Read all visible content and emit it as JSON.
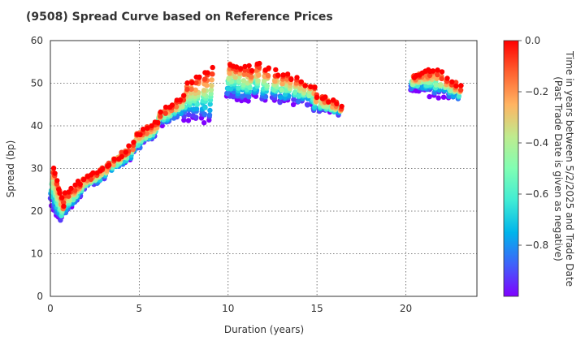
{
  "chart_data": {
    "type": "scatter",
    "title": "(9508)   Spread Curve based on Reference Prices",
    "xlabel": "Duration (years)",
    "ylabel": "Spread (bp)",
    "xlim": [
      0,
      24
    ],
    "ylim": [
      0,
      60
    ],
    "xticks": [
      0,
      5,
      10,
      15,
      20
    ],
    "yticks": [
      0,
      10,
      20,
      30,
      40,
      50,
      60
    ],
    "grid": true,
    "colorbar": {
      "label_line1": "Time in years between 5/2/2025 and Trade Date",
      "label_line2": "(Past Trade Date is given as negative)",
      "range": [
        -1.0,
        0.0
      ],
      "ticks": [
        0.0,
        -0.2,
        -0.4,
        -0.6,
        -0.8
      ],
      "tick_labels": [
        "0.0",
        "−0.2",
        "−0.4",
        "−0.6",
        "−0.8"
      ],
      "colormap": "rainbow",
      "colors": [
        "#7f00ff",
        "#3f62fa",
        "#00b5eb",
        "#40ecd4",
        "#80feb3",
        "#bfeb8e",
        "#ffb462",
        "#ff6230",
        "#ff0000"
      ]
    },
    "bond_segments": [
      {
        "x": [
          0.15,
          0.8
        ],
        "y_at_time0": [
          30.5,
          21.0
        ],
        "y_at_time_old": [
          22.5,
          17.5
        ]
      },
      {
        "x": [
          0.8,
          2.0
        ],
        "y_at_time0": [
          23.5,
          28.0
        ],
        "y_at_time_old": [
          18.5,
          24.0
        ]
      },
      {
        "x": [
          2.0,
          3.3
        ],
        "y_at_time0": [
          27.5,
          31.0
        ],
        "y_at_time_old": [
          25.5,
          27.5
        ]
      },
      {
        "x": [
          3.3,
          4.8
        ],
        "y_at_time0": [
          31.0,
          36.0
        ],
        "y_at_time_old": [
          29.0,
          32.5
        ]
      },
      {
        "x": [
          4.8,
          6.2
        ],
        "y_at_time0": [
          38.0,
          41.0
        ],
        "y_at_time_old": [
          33.5,
          38.5
        ]
      },
      {
        "x": [
          6.2,
          7.6
        ],
        "y_at_time0": [
          43.0,
          47.0
        ],
        "y_at_time_old": [
          40.0,
          42.5
        ]
      },
      {
        "x": [
          7.6,
          9.3
        ],
        "y_at_time0": [
          49.5,
          54.0
        ],
        "y_at_time_old": [
          42.0,
          41.0
        ]
      },
      {
        "x": [
          10.0,
          11.5
        ],
        "y_at_time0": [
          55.0,
          53.0
        ],
        "y_at_time_old": [
          47.0,
          46.0
        ]
      },
      {
        "x": [
          11.5,
          13.3
        ],
        "y_at_time0": [
          54.5,
          51.5
        ],
        "y_at_time_old": [
          47.0,
          45.5
        ]
      },
      {
        "x": [
          13.3,
          15.0
        ],
        "y_at_time0": [
          52.0,
          49.0
        ],
        "y_at_time_old": [
          46.0,
          45.0
        ]
      },
      {
        "x": [
          15.0,
          16.5
        ],
        "y_at_time0": [
          47.0,
          44.5
        ],
        "y_at_time_old": [
          44.0,
          43.0
        ]
      },
      {
        "x": [
          20.4,
          21.5
        ],
        "y_at_time0": [
          51.5,
          53.0
        ],
        "y_at_time_old": [
          49.0,
          48.5
        ]
      },
      {
        "x": [
          21.5,
          23.3
        ],
        "y_at_time0": [
          53.5,
          48.5
        ],
        "y_at_time_old": [
          47.5,
          46.5
        ]
      }
    ]
  }
}
